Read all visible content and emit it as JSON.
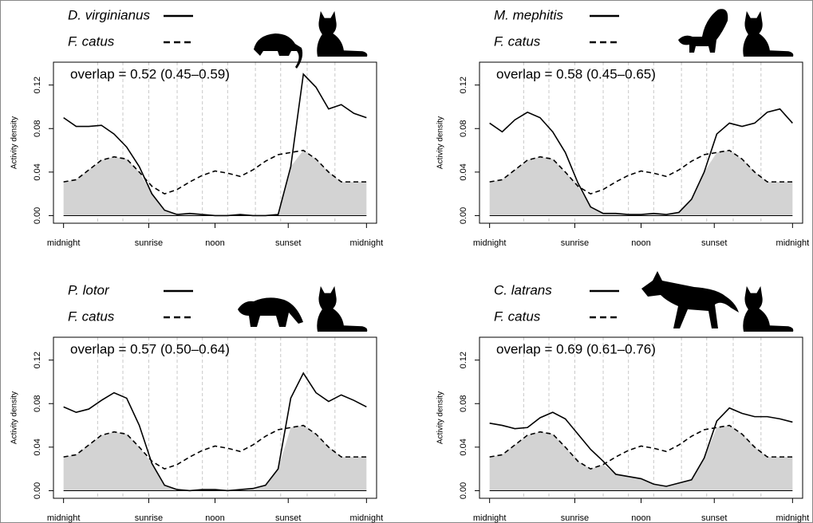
{
  "chart_data": [
    {
      "type": "line",
      "annotation": "overlap = 0.52 (0.45–0.59)",
      "ylabel": "Activity density",
      "x": [
        0,
        1,
        2,
        3,
        4,
        5,
        6,
        7,
        8,
        9,
        10,
        11,
        12,
        13,
        14,
        15,
        16,
        17,
        18,
        19,
        20,
        21,
        22,
        23,
        24
      ],
      "xlim": [
        -0.8,
        24.8
      ],
      "xticks": [
        {
          "value": 0,
          "label": "midnight"
        },
        {
          "value": 6.75,
          "label": "sunrise"
        },
        {
          "value": 12,
          "label": "noon"
        },
        {
          "value": 17.8,
          "label": "sunset"
        },
        {
          "value": 24,
          "label": "midnight"
        }
      ],
      "xgrid": [
        2.7,
        4.7,
        6.75,
        9,
        11,
        13,
        15.2,
        17.2,
        19.3,
        21.5
      ],
      "ylim": [
        -0.007,
        0.141
      ],
      "yticks": [
        {
          "value": 0,
          "label": "0.00"
        },
        0.04,
        0.08,
        0.12
      ],
      "overlap_color": "#d3d3d3",
      "series": [
        {
          "name": "D. virginianus",
          "color": "#000000",
          "dash": "solid",
          "values": [
            0.09,
            0.082,
            0.082,
            0.083,
            0.075,
            0.063,
            0.045,
            0.02,
            0.005,
            0.001,
            0.002,
            0.001,
            0.0,
            0.0,
            0.001,
            0.0,
            0.0,
            0.001,
            0.045,
            0.13,
            0.118,
            0.098,
            0.102,
            0.094,
            0.09
          ]
        },
        {
          "name": "F. catus",
          "color": "#000000",
          "dash": "dashed",
          "values": [
            0.031,
            0.033,
            0.042,
            0.051,
            0.054,
            0.052,
            0.04,
            0.027,
            0.02,
            0.024,
            0.031,
            0.037,
            0.041,
            0.039,
            0.036,
            0.042,
            0.05,
            0.056,
            0.058,
            0.06,
            0.052,
            0.04,
            0.031,
            0.031,
            0.031
          ]
        }
      ]
    },
    {
      "type": "line",
      "annotation": "overlap = 0.58 (0.45–0.65)",
      "ylabel": "Activity density",
      "x": [
        0,
        1,
        2,
        3,
        4,
        5,
        6,
        7,
        8,
        9,
        10,
        11,
        12,
        13,
        14,
        15,
        16,
        17,
        18,
        19,
        20,
        21,
        22,
        23,
        24
      ],
      "xlim": [
        -0.8,
        24.8
      ],
      "xticks": [
        {
          "value": 0,
          "label": "midnight"
        },
        {
          "value": 6.75,
          "label": "sunrise"
        },
        {
          "value": 12,
          "label": "noon"
        },
        {
          "value": 17.8,
          "label": "sunset"
        },
        {
          "value": 24,
          "label": "midnight"
        }
      ],
      "xgrid": [
        2.7,
        4.7,
        6.75,
        9,
        11,
        13,
        15.2,
        17.2,
        19.3,
        21.5
      ],
      "ylim": [
        -0.007,
        0.141
      ],
      "yticks": [
        {
          "value": 0,
          "label": "0.00"
        },
        0.04,
        0.08,
        0.12
      ],
      "overlap_color": "#d3d3d3",
      "series": [
        {
          "name": "M. mephitis",
          "color": "#000000",
          "dash": "solid",
          "values": [
            0.085,
            0.077,
            0.088,
            0.095,
            0.09,
            0.077,
            0.058,
            0.03,
            0.008,
            0.002,
            0.002,
            0.001,
            0.001,
            0.002,
            0.001,
            0.003,
            0.015,
            0.04,
            0.075,
            0.085,
            0.082,
            0.085,
            0.095,
            0.098,
            0.085
          ]
        },
        {
          "name": "F. catus",
          "color": "#000000",
          "dash": "dashed",
          "values": [
            0.031,
            0.033,
            0.042,
            0.051,
            0.054,
            0.052,
            0.04,
            0.027,
            0.02,
            0.024,
            0.031,
            0.037,
            0.041,
            0.039,
            0.036,
            0.042,
            0.05,
            0.056,
            0.058,
            0.06,
            0.052,
            0.04,
            0.031,
            0.031,
            0.031
          ]
        }
      ]
    },
    {
      "type": "line",
      "annotation": "overlap = 0.57 (0.50–0.64)",
      "ylabel": "Activity density",
      "x": [
        0,
        1,
        2,
        3,
        4,
        5,
        6,
        7,
        8,
        9,
        10,
        11,
        12,
        13,
        14,
        15,
        16,
        17,
        18,
        19,
        20,
        21,
        22,
        23,
        24
      ],
      "xlim": [
        -0.8,
        24.8
      ],
      "xticks": [
        {
          "value": 0,
          "label": "midnight"
        },
        {
          "value": 6.75,
          "label": "sunrise"
        },
        {
          "value": 12,
          "label": "noon"
        },
        {
          "value": 17.8,
          "label": "sunset"
        },
        {
          "value": 24,
          "label": "midnight"
        }
      ],
      "xgrid": [
        2.7,
        4.7,
        6.75,
        9,
        11,
        13,
        15.2,
        17.2,
        19.3,
        21.5
      ],
      "ylim": [
        -0.007,
        0.141
      ],
      "yticks": [
        {
          "value": 0,
          "label": "0.00"
        },
        0.04,
        0.08,
        0.12
      ],
      "overlap_color": "#d3d3d3",
      "series": [
        {
          "name": "P. lotor",
          "color": "#000000",
          "dash": "solid",
          "values": [
            0.077,
            0.072,
            0.075,
            0.083,
            0.09,
            0.085,
            0.06,
            0.025,
            0.005,
            0.001,
            0.0,
            0.001,
            0.001,
            0.0,
            0.001,
            0.002,
            0.005,
            0.02,
            0.085,
            0.108,
            0.09,
            0.082,
            0.088,
            0.083,
            0.077
          ]
        },
        {
          "name": "F. catus",
          "color": "#000000",
          "dash": "dashed",
          "values": [
            0.031,
            0.033,
            0.042,
            0.051,
            0.054,
            0.052,
            0.04,
            0.027,
            0.02,
            0.024,
            0.031,
            0.037,
            0.041,
            0.039,
            0.036,
            0.042,
            0.05,
            0.056,
            0.058,
            0.06,
            0.052,
            0.04,
            0.031,
            0.031,
            0.031
          ]
        }
      ]
    },
    {
      "type": "line",
      "annotation": "overlap = 0.69 (0.61–0.76)",
      "ylabel": "Activity density",
      "x": [
        0,
        1,
        2,
        3,
        4,
        5,
        6,
        7,
        8,
        9,
        10,
        11,
        12,
        13,
        14,
        15,
        16,
        17,
        18,
        19,
        20,
        21,
        22,
        23,
        24
      ],
      "xlim": [
        -0.8,
        24.8
      ],
      "xticks": [
        {
          "value": 0,
          "label": "midnight"
        },
        {
          "value": 6.75,
          "label": "sunrise"
        },
        {
          "value": 12,
          "label": "noon"
        },
        {
          "value": 17.8,
          "label": "sunset"
        },
        {
          "value": 24,
          "label": "midnight"
        }
      ],
      "xgrid": [
        2.7,
        4.7,
        6.75,
        9,
        11,
        13,
        15.2,
        17.2,
        19.3,
        21.5
      ],
      "ylim": [
        -0.007,
        0.141
      ],
      "yticks": [
        {
          "value": 0,
          "label": "0.00"
        },
        0.04,
        0.08,
        0.12
      ],
      "overlap_color": "#d3d3d3",
      "series": [
        {
          "name": "C. latrans",
          "color": "#000000",
          "dash": "solid",
          "values": [
            0.062,
            0.06,
            0.057,
            0.058,
            0.067,
            0.072,
            0.066,
            0.052,
            0.038,
            0.027,
            0.015,
            0.013,
            0.011,
            0.006,
            0.004,
            0.007,
            0.01,
            0.03,
            0.064,
            0.076,
            0.071,
            0.068,
            0.068,
            0.066,
            0.063
          ]
        },
        {
          "name": "F. catus",
          "color": "#000000",
          "dash": "dashed",
          "values": [
            0.031,
            0.033,
            0.042,
            0.051,
            0.054,
            0.052,
            0.04,
            0.027,
            0.02,
            0.024,
            0.031,
            0.037,
            0.041,
            0.039,
            0.036,
            0.042,
            0.05,
            0.056,
            0.058,
            0.06,
            0.052,
            0.04,
            0.031,
            0.031,
            0.031
          ]
        }
      ]
    }
  ]
}
